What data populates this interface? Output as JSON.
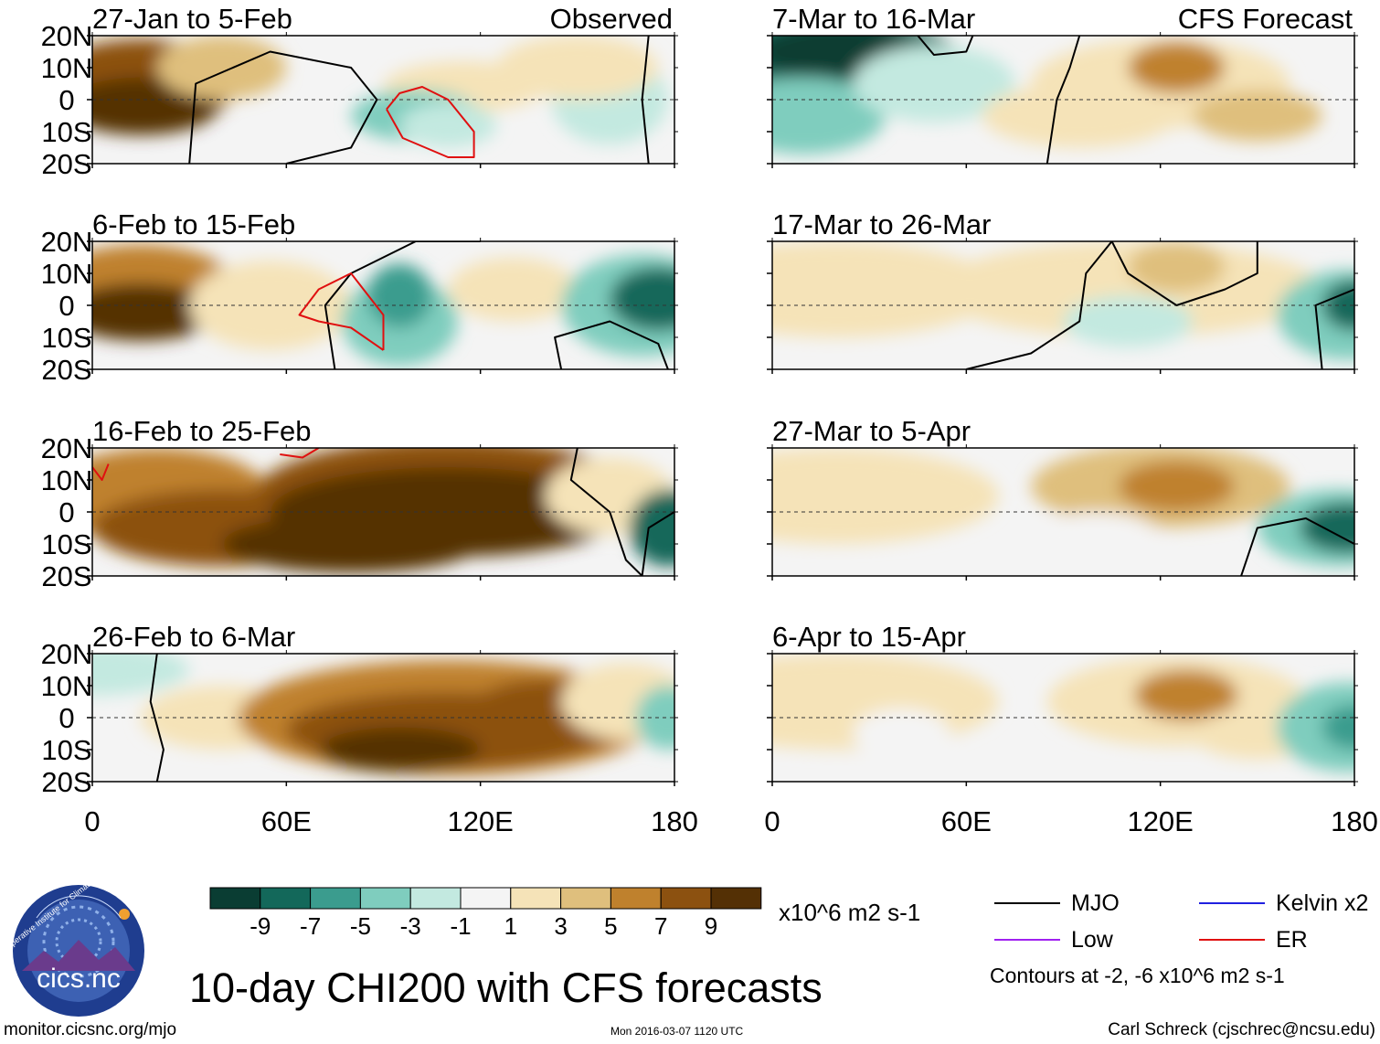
{
  "chart_data": {
    "type": "heatmap",
    "title": "10-day CHI200 with CFS forecasts",
    "columns": [
      {
        "label": "Observed",
        "panels": [
          {
            "period": "27-Jan to 5-Feb"
          },
          {
            "period": "6-Feb to 15-Feb"
          },
          {
            "period": "16-Feb to 25-Feb"
          },
          {
            "period": "26-Feb to 6-Mar"
          }
        ]
      },
      {
        "label": "CFS Forecast",
        "panels": [
          {
            "period": "7-Mar to 16-Mar"
          },
          {
            "period": "17-Mar to 26-Mar"
          },
          {
            "period": "27-Mar to 5-Apr"
          },
          {
            "period": "6-Apr to 15-Apr"
          }
        ]
      }
    ],
    "y_ticks": [
      "20N",
      "10N",
      "0",
      "10S",
      "20S"
    ],
    "y_range": [
      -20,
      20
    ],
    "x_ticks": [
      "0",
      "60E",
      "120E",
      "180"
    ],
    "x_range": [
      0,
      180
    ],
    "colorbar": {
      "ticks": [
        "-9",
        "-7",
        "-5",
        "-3",
        "-1",
        "1",
        "3",
        "5",
        "7",
        "9"
      ],
      "units": "x10^6 m2 s-1",
      "colors": [
        "#0a3d33",
        "#13685a",
        "#3b9c8e",
        "#7fcdbe",
        "#c3e9e0",
        "#f4f4f4",
        "#f5e3b8",
        "#dfbf7d",
        "#bf812d",
        "#8c5110",
        "#543005"
      ]
    },
    "legend": [
      {
        "name": "MJO",
        "color": "#000000"
      },
      {
        "name": "Kelvin x2",
        "color": "#2020e0"
      },
      {
        "name": "Low",
        "color": "#a020f0"
      },
      {
        "name": "ER",
        "color": "#e01010"
      }
    ],
    "contour_note": "Contours at -2, -6 x10^6 m2 s-1"
  },
  "footer": {
    "logo_text": "cics.nc",
    "logo_ring_text": "Cooperative Institute for Climate and Satellites",
    "url": "monitor.cicsnc.org/mjo",
    "timestamp": "Mon 2016-03-07 1120 UTC",
    "author": "Carl Schreck (cjschrec@ncsu.edu)"
  }
}
